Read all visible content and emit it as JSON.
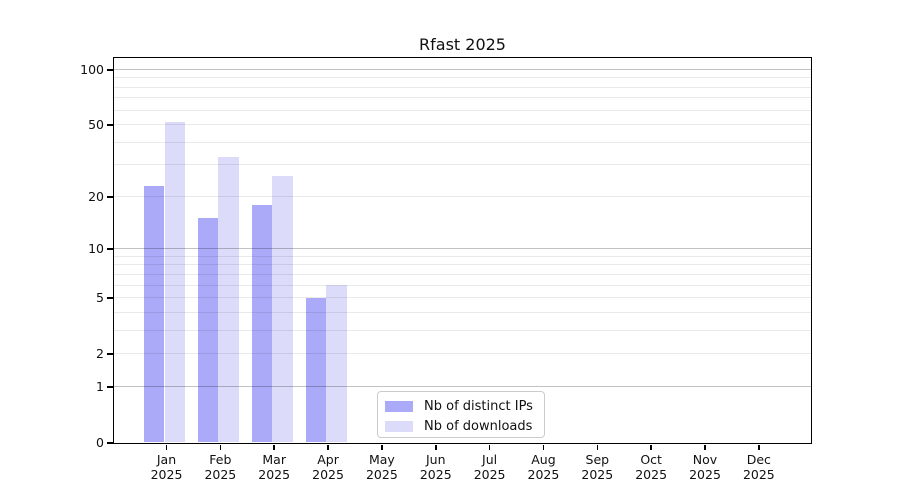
{
  "chart_data": {
    "type": "bar",
    "title": "Rfast 2025",
    "months": [
      "Jan",
      "Feb",
      "Mar",
      "Apr",
      "May",
      "Jun",
      "Jul",
      "Aug",
      "Sep",
      "Oct",
      "Nov",
      "Dec"
    ],
    "year_label": "2025",
    "series": [
      {
        "name": "Nb of distinct IPs",
        "color": "#aaaaf9",
        "values": [
          23,
          15,
          18,
          5,
          0,
          0,
          0,
          0,
          0,
          0,
          0,
          0
        ]
      },
      {
        "name": "Nb of downloads",
        "color": "#dcdcfa",
        "values": [
          52,
          33,
          26,
          6,
          0,
          0,
          0,
          0,
          0,
          0,
          0,
          0
        ]
      }
    ],
    "y_axis": {
      "scale": "log1p",
      "ylim": [
        0,
        100
      ],
      "tick_values": [
        0,
        1,
        2,
        5,
        10,
        20,
        50,
        100
      ],
      "tick_labels": [
        "0",
        "1",
        "2",
        "5",
        "10",
        "20",
        "50",
        "100"
      ],
      "gridline_values": [
        1,
        2,
        3,
        4,
        5,
        6,
        7,
        8,
        9,
        10,
        20,
        30,
        40,
        50,
        60,
        70,
        80,
        90,
        100
      ],
      "major_gridline_values": [
        1,
        10,
        100
      ]
    },
    "xlabel": "",
    "ylabel": "",
    "grid": "on",
    "legend_position": "inside-bottom-left-of-center"
  }
}
